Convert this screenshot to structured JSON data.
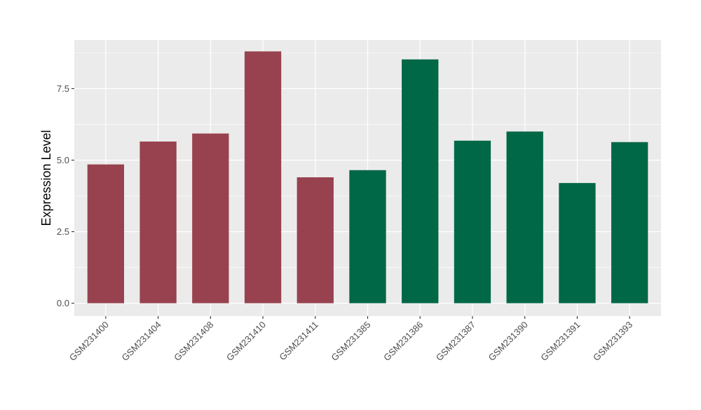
{
  "chart_data": {
    "type": "bar",
    "title": "",
    "xlabel": "",
    "ylabel": "Expression Level",
    "ylim": [
      -0.45,
      9.2
    ],
    "yticks": [
      0.0,
      2.5,
      5.0,
      7.5
    ],
    "ytick_labels": [
      "0.0",
      "2.5",
      "5.0",
      "7.5"
    ],
    "grid": true,
    "legend": "none",
    "categories": [
      "GSM231400",
      "GSM231404",
      "GSM231408",
      "GSM231410",
      "GSM231411",
      "GSM231385",
      "GSM231386",
      "GSM231387",
      "GSM231390",
      "GSM231391",
      "GSM231393"
    ],
    "values": [
      4.85,
      5.65,
      5.93,
      8.8,
      4.4,
      4.65,
      8.52,
      5.68,
      6.0,
      4.2,
      5.63
    ],
    "bar_colors": [
      "#98424f",
      "#98424f",
      "#98424f",
      "#98424f",
      "#98424f",
      "#006747",
      "#006747",
      "#006747",
      "#006747",
      "#006747",
      "#006747"
    ],
    "panel_background": "#ebebeb",
    "grid_color": "#ffffff"
  }
}
